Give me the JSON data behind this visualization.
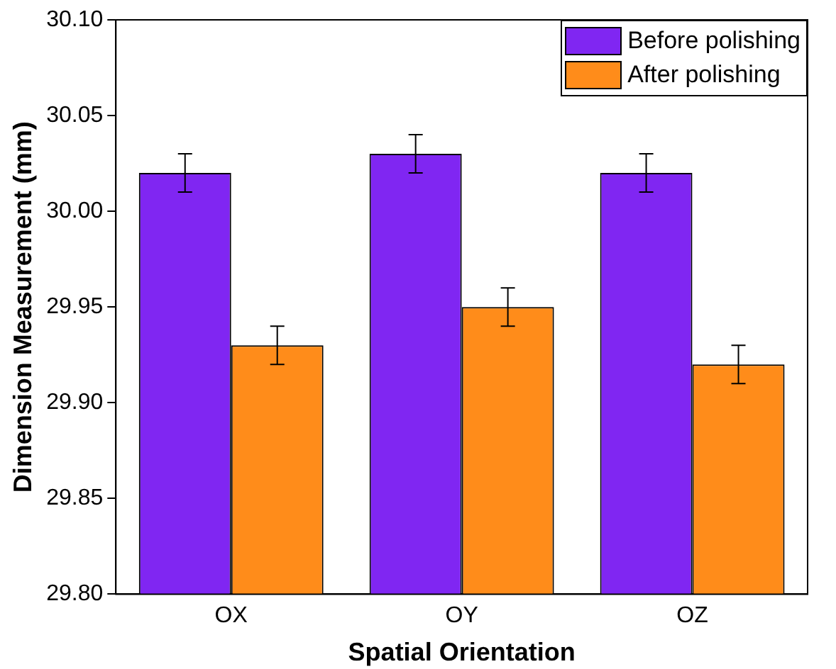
{
  "chart_data": {
    "type": "bar",
    "xlabel": "Spatial Orientation",
    "ylabel": "Dimension Measurement (mm)",
    "categories": [
      "OX",
      "OY",
      "OZ"
    ],
    "series": [
      {
        "name": "Before polishing",
        "color": "#8026f2",
        "values": [
          30.02,
          30.03,
          30.02
        ],
        "errors": [
          0.01,
          0.01,
          0.01
        ]
      },
      {
        "name": "After polishing",
        "color": "#ff8c1a",
        "values": [
          29.93,
          29.95,
          29.92
        ],
        "errors": [
          0.01,
          0.01,
          0.01
        ]
      }
    ],
    "ylim": [
      29.8,
      30.1
    ],
    "yticks": [
      {
        "value": 29.8,
        "label": "29.80"
      },
      {
        "value": 29.85,
        "label": "29.85"
      },
      {
        "value": 29.9,
        "label": "29.90"
      },
      {
        "value": 29.95,
        "label": "29.95"
      },
      {
        "value": 30.0,
        "label": "30.00"
      },
      {
        "value": 30.05,
        "label": "30.05"
      },
      {
        "value": 30.1,
        "label": "30.10"
      }
    ],
    "grid": false,
    "legend": "top right"
  }
}
